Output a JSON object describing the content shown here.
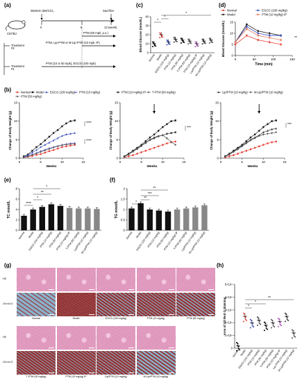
{
  "labels": {
    "a": "(a)",
    "b": "(b)",
    "c": "(c)",
    "d": "(d)",
    "e": "(e)",
    "f": "(f)",
    "g": "(g)",
    "h": "(h)"
  },
  "panel_a": {
    "mouse": "C57/BJ",
    "diet": "Western diet/CCl₄",
    "sacrifice": "Sacrifice",
    "week0": "0",
    "week8": "8",
    "week13": "13 (week)",
    "treatment2": "Treatment #2",
    "treatment1": "Treatment #1",
    "bar1": "PTM (50 mpk, p.o.)",
    "bar2": "PTM, Lip-PTM or M-Lip-PTM (10 mpk, IP)",
    "bar3": "PTM (10 or 50 mpk),   EGCG (100 mpk)"
  },
  "colors": {
    "normal": "#e8443a",
    "model": "#1a1a1a",
    "egcg": "#3a4fc0",
    "ptm10": "#6a6ad0",
    "ptm50": "#555555",
    "ptmip": "#333333",
    "tptm": "#555555",
    "lip": "#333333",
    "mlip": "#555555",
    "purple": "#b455c8",
    "bar_black": "#111111",
    "bar_gray": "#888888",
    "he_pink": "#e7a8c9",
    "oil_red": "#8b1f1f",
    "oil_blue": "#7fa7c4"
  },
  "legend_b1": [
    "Normal",
    "Model",
    "EGCG (100 mg/kg)",
    "PTM (10 mg/kg)",
    "PTM (50 mg/kg)"
  ],
  "legend_b2": [
    "PTM (10 mg/kg) IP",
    "T-PTM (50 mg/kg)"
  ],
  "legend_b3": [
    "Lip/PTM (10 mg/kg)",
    "M-Lip/PTM (10 mg/kg)"
  ],
  "legend_d": [
    "Normal",
    "Model",
    "EGCG (100 mg/kg)",
    "PTM (10 mg/kg) IP"
  ],
  "significance": {
    "four": "****",
    "three": "***",
    "two": "**",
    "one": "*"
  },
  "axes": {
    "bw_ylabel": "Change of Body Weight (g)",
    "weeks": "Weeks",
    "bg_ylabel": "Blood Glucose (mmol/L)",
    "time": "Time (min)",
    "tc_ylabel": "TC mmol/L",
    "tg_ylabel": "TG mmol/L",
    "oil_ylabel": "Area of Oil Red O Staining"
  },
  "bar_categories": [
    "Normal",
    "Model",
    "EGCG (100 mg/kg)",
    "PTM (10 mg/kg)",
    "PTM (50 mg/kg)",
    "PTM (10 mg/kg) IP",
    "T-PTM (50 mg/kg)",
    "Lip/PTM (10 mg/kg)",
    "M-Lip/PTM (10 mg/kg)"
  ],
  "h_categories": [
    "Normal",
    "Model",
    "EGCG (100 mg/kg)",
    "PTM (10 mg/kg)",
    "PTM (50 mg/kg)",
    "T-PTM (50 mg/kg)",
    "PTM (10 mg/kg) IP",
    "Lip-PTM (10 mg/kg)",
    "M-Lip/PTM (10 mg/kg)"
  ],
  "chart_data": [
    {
      "id": "c",
      "type": "scatter",
      "categories": [
        "Normal",
        "Model",
        "EGCG (100 mg/kg)",
        "PTM (10 mg/kg)",
        "PTM (50 mg/kg)",
        "T-PTM (50 mg/kg)",
        "PTM (10 mg/kg) IP",
        "Lip/PTM (10 mg/kg)",
        "M-Lip/PTM (10 mg/kg)"
      ],
      "values": [
        10,
        20,
        12,
        15,
        14,
        13,
        10,
        13,
        14
      ],
      "ylim": [
        0,
        40
      ],
      "yticks": [
        0,
        10,
        20,
        30,
        40
      ],
      "ylabel": "Blood Glucose (mmol/L)"
    },
    {
      "id": "d",
      "type": "line",
      "x": [
        0,
        30,
        60,
        90,
        120
      ],
      "series": [
        {
          "name": "Normal",
          "values": [
            5,
            9,
            7,
            6,
            5
          ]
        },
        {
          "name": "Model",
          "values": [
            6,
            14,
            11,
            10,
            9
          ]
        },
        {
          "name": "EGCG (100 mg/kg)",
          "values": [
            6,
            13,
            10,
            9,
            9
          ]
        },
        {
          "name": "PTM (10 mg/kg) IP",
          "values": [
            6,
            12,
            9,
            8,
            7
          ]
        }
      ],
      "xlim": [
        0,
        150
      ],
      "xticks": [
        0,
        50,
        100,
        150
      ],
      "ylim": [
        0,
        15
      ],
      "yticks": [
        0,
        5,
        10,
        15
      ],
      "xlabel": "Time (min)",
      "ylabel": "Blood Glucose (mmol/L)"
    },
    {
      "id": "b1",
      "type": "line",
      "x": [
        1,
        2,
        3,
        4,
        5,
        6,
        7,
        8,
        9,
        10,
        11,
        12,
        13
      ],
      "series": [
        {
          "name": "Normal",
          "values": [
            0.2,
            0.4,
            0.6,
            0.9,
            1.1,
            1.5,
            1.9,
            2.2,
            2.6,
            3.0,
            3.2,
            3.4,
            3.6
          ]
        },
        {
          "name": "Model",
          "values": [
            0.5,
            1,
            2,
            3,
            3.8,
            4.8,
            5.8,
            6.8,
            7.6,
            8.6,
            9.4,
            10,
            10.2
          ]
        },
        {
          "name": "EGCG (100 mg/kg)",
          "values": [
            0.3,
            0.8,
            1.5,
            2.2,
            3,
            3.6,
            4.2,
            4.8,
            5.4,
            6,
            6.4,
            6.6,
            6.8
          ]
        },
        {
          "name": "PTM (10 mg/kg)",
          "values": [
            0.3,
            0.6,
            1.0,
            1.4,
            1.9,
            2.3,
            2.7,
            3.0,
            3.3,
            3.6,
            3.8,
            4.0,
            4.1
          ]
        },
        {
          "name": "PTM (50 mg/kg)",
          "values": [
            0.2,
            0.5,
            0.9,
            1.3,
            1.7,
            2.1,
            2.5,
            2.9,
            3.2,
            3.5,
            3.7,
            3.8,
            3.9
          ]
        }
      ],
      "xlim": [
        0,
        15
      ],
      "xticks": [
        0,
        5,
        10,
        15
      ],
      "ylim": [
        0,
        15
      ],
      "yticks": [
        0,
        5,
        10,
        15
      ],
      "xlabel": "Weeks",
      "ylabel": "Change of Body Weight (g)"
    },
    {
      "id": "b2",
      "type": "line",
      "x": [
        1,
        2,
        3,
        4,
        5,
        6,
        7,
        8,
        9,
        10,
        11,
        12,
        13
      ],
      "series": [
        {
          "name": "Normal",
          "values": [
            0.2,
            0.5,
            0.8,
            1.2,
            1.6,
            2.0,
            2.4,
            2.8,
            3.2,
            3.6,
            4.0,
            4.3,
            4.5
          ]
        },
        {
          "name": "Model",
          "values": [
            0.5,
            1.2,
            2,
            2.8,
            3.6,
            4.6,
            5.6,
            6.4,
            7.4,
            8.4,
            9.2,
            10,
            10.2
          ]
        },
        {
          "name": "PTM (10 mg/kg) IP",
          "values": [
            0.4,
            1,
            1.8,
            2.5,
            3.3,
            4.1,
            4.9,
            5.4,
            5.9,
            6.2,
            6.6,
            6.8,
            7
          ]
        },
        {
          "name": "T-PTM (50 mg/kg)",
          "values": [
            0.4,
            1,
            1.8,
            2.6,
            3.4,
            4.2,
            5,
            5.6,
            6,
            6.2,
            5.4,
            4.4,
            3.6
          ]
        }
      ],
      "xlim": [
        0,
        15
      ],
      "xticks": [
        0,
        5,
        10,
        15
      ],
      "ylim": [
        0,
        15
      ],
      "yticks": [
        0,
        5,
        10,
        15
      ],
      "xlabel": "Weeks",
      "ylabel": "Change of Body Weight (g)"
    },
    {
      "id": "b3",
      "type": "line",
      "x": [
        1,
        2,
        3,
        4,
        5,
        6,
        7,
        8,
        9,
        10,
        11,
        12,
        13
      ],
      "series": [
        {
          "name": "Normal",
          "values": [
            0.2,
            0.5,
            0.8,
            1.2,
            1.6,
            2.0,
            2.4,
            2.8,
            3.2,
            3.6,
            4.0,
            4.3,
            4.5
          ]
        },
        {
          "name": "Model",
          "values": [
            0.5,
            1.2,
            2,
            2.8,
            3.6,
            4.6,
            5.6,
            6.4,
            7.4,
            8.4,
            9.2,
            10,
            10.2
          ]
        },
        {
          "name": "Lip/PTM (10 mg/kg)",
          "values": [
            0.4,
            1,
            1.8,
            2.6,
            3.4,
            4.2,
            5,
            5.6,
            6.2,
            7,
            7.4,
            7.8,
            8
          ]
        },
        {
          "name": "M-Lip/PTM (10 mg/kg)",
          "values": [
            0.4,
            1,
            1.7,
            2.4,
            3.2,
            4.0,
            4.8,
            5.4,
            6,
            6.4,
            6.6,
            6.8,
            7
          ]
        }
      ],
      "xlim": [
        0,
        15
      ],
      "xticks": [
        0,
        5,
        10,
        15
      ],
      "ylim": [
        0,
        15
      ],
      "yticks": [
        0,
        5,
        10,
        15
      ],
      "xlabel": "Weeks",
      "ylabel": "Change of Body Weight (g)"
    },
    {
      "id": "e",
      "type": "bar",
      "categories": [
        "Normal",
        "Model",
        "EGCG (100 mg/kg)",
        "PTM (10 mg/kg)",
        "PTM (50 mg/kg)",
        "PTM (10 mg/kg) IP",
        "T-PTM (50 mg/kg)",
        "Lip/PTM (10 mg/kg)",
        "M-Lip/PTM (10 mg/kg)"
      ],
      "values": [
        2.8,
        4.0,
        4.5,
        5.0,
        4.7,
        4.3,
        4.2,
        4.2,
        4.1
      ],
      "ylim": [
        0,
        8
      ],
      "yticks": [
        0,
        2,
        4,
        6,
        8
      ],
      "ylabel": "TC mmol/L"
    },
    {
      "id": "f",
      "type": "bar",
      "categories": [
        "Normal",
        "Model",
        "EGCG (100 mg/kg)",
        "PTM (10 mg/kg)",
        "PTM (50 mg/kg)",
        "PTM (10 mg/kg) IP",
        "T-PTM (50 mg/kg)",
        "Lip/PTM (10 mg/kg)",
        "M-Lip/PTM (10 mg/kg)"
      ],
      "values": [
        1.05,
        1.3,
        1.0,
        0.95,
        0.9,
        1.0,
        1.05,
        1.1,
        1.2
      ],
      "ylim": [
        0,
        2.0
      ],
      "yticks": [
        0.0,
        0.5,
        1.0,
        1.5,
        2.0
      ],
      "ylabel": "TG mmol/L"
    },
    {
      "id": "h",
      "type": "scatter",
      "categories": [
        "Normal",
        "Model",
        "EGCG (100 mg/kg)",
        "PTM (10 mg/kg)",
        "PTM (50 mg/kg)",
        "T-PTM (50 mg/kg)",
        "PTM (10 mg/kg) IP",
        "Lip-PTM (10 mg/kg)",
        "M-Lip/PTM (10 mg/kg)"
      ],
      "values": [
        2000,
        25000,
        20000,
        22000,
        18000,
        20000,
        21000,
        25000,
        12000
      ],
      "ylim": [
        0,
        50000
      ],
      "ytick_labels": [
        "0",
        "1×10⁴",
        "2×10⁴",
        "3×10⁴",
        "4×10⁴",
        "5×10⁴"
      ],
      "ylabel": "Area of Oil Red O Staining"
    }
  ],
  "histology": {
    "row_he": "HE",
    "row_oil": "Oil red O",
    "top_captions": [
      "Normal",
      "Model",
      "EGCG (100 mg/kg)",
      "PTM (10 mg/kg)",
      "PTM (50 mg/kg)"
    ],
    "bottom_captions": [
      "T-PTM (50 mg/kg)",
      "PTM (10 mg/kg) IP",
      "Lip/PTM (10 mg/kg)",
      "M-Lip/PTM (10 mg/kg)"
    ],
    "top_oil_levels": [
      0.05,
      0.95,
      0.7,
      0.75,
      0.65
    ],
    "bottom_oil_levels": [
      0.8,
      0.8,
      0.75,
      0.4
    ]
  }
}
